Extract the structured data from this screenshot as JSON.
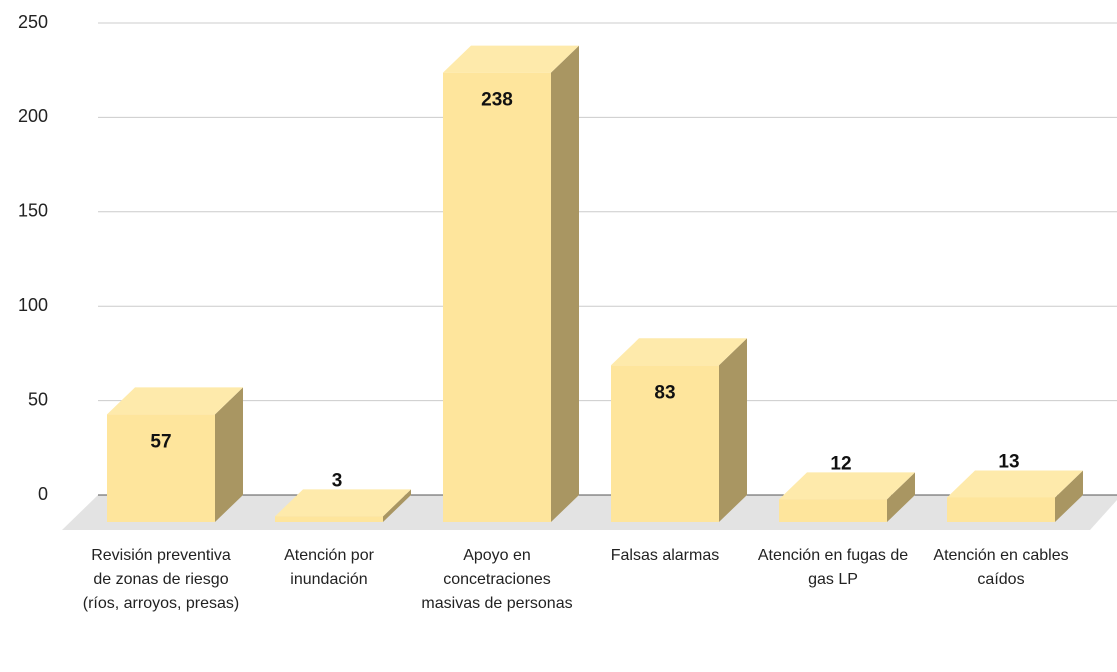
{
  "chart_data": {
    "type": "bar3d",
    "categories": [
      "Revisión preventiva de zonas de riesgo (ríos, arroyos, presas)",
      "Atención por inundación",
      "Apoyo en concetraciones masivas de personas",
      "Falsas alarmas",
      "Atención en fugas de gas LP",
      "Atención en cables caídos"
    ],
    "values": [
      57,
      3,
      238,
      83,
      12,
      13
    ],
    "color": "#fee59c",
    "ylim": [
      0,
      250
    ],
    "yticks": [
      0,
      50,
      100,
      150,
      200,
      250
    ],
    "grid": true
  }
}
